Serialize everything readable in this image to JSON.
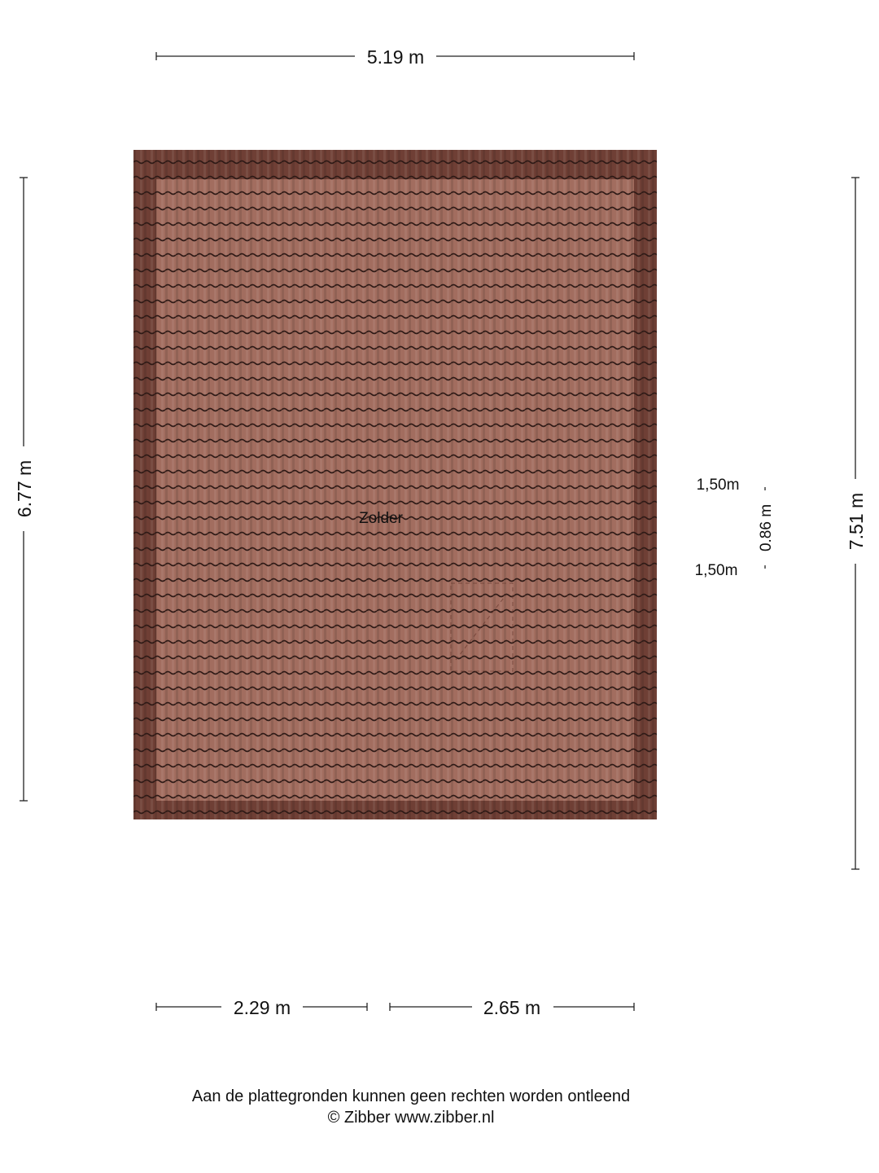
{
  "room": {
    "name": "Zolder"
  },
  "dimensions": {
    "top_width": "5.19 m",
    "left_height": "6.77 m",
    "right_height": "7.51 m",
    "bottom_left": "2.29 m",
    "bottom_right": "2.65 m",
    "hatch_height": "0.86 m",
    "ceiling_height_top": "1,50m",
    "ceiling_height_bottom": "1,50m"
  },
  "footer": {
    "disclaimer": "Aan de plattegronden kunnen geen rechten worden ontleend",
    "copyright": "© Zibber www.zibber.nl"
  },
  "colors": {
    "roof_outer": "#6f3f35",
    "roof_inner": "#a26d5f",
    "tile_line": "#2e1a16"
  }
}
